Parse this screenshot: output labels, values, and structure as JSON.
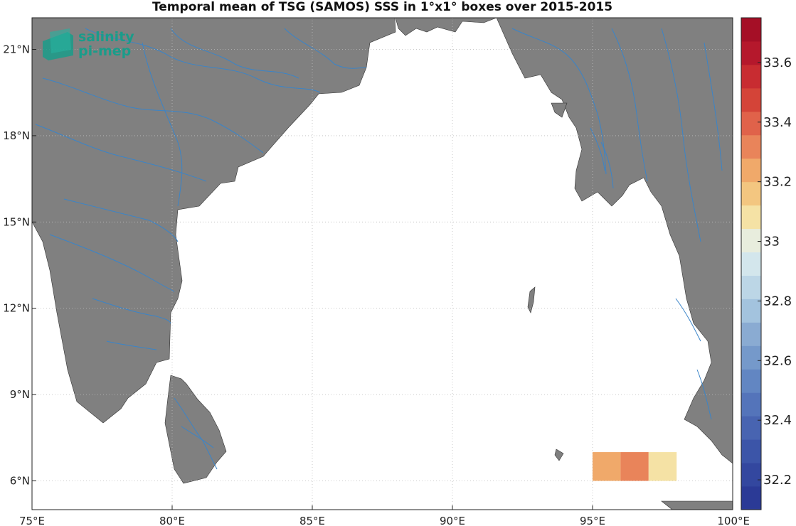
{
  "title": "Temporal mean of TSG (SAMOS) SSS in 1°x1° boxes over 2015-2015",
  "logo": {
    "line1": "salinity",
    "line2": "pi-mep",
    "color": "#1a9c8a"
  },
  "map": {
    "lon_range": [
      75,
      100
    ],
    "lat_range": [
      5,
      22.1
    ],
    "land_color": "#808080",
    "river_color": "#3a84c8",
    "grid": true,
    "lon_ticks": [
      {
        "value": 75,
        "label": "75°E"
      },
      {
        "value": 80,
        "label": "80°E"
      },
      {
        "value": 85,
        "label": "85°E"
      },
      {
        "value": 90,
        "label": "90°E"
      },
      {
        "value": 95,
        "label": "95°E"
      },
      {
        "value": 100,
        "label": "100°E"
      }
    ],
    "lat_ticks": [
      {
        "value": 6,
        "label": "6°N"
      },
      {
        "value": 9,
        "label": "9°N"
      },
      {
        "value": 12,
        "label": "12°N"
      },
      {
        "value": 15,
        "label": "15°N"
      },
      {
        "value": 18,
        "label": "18°N"
      },
      {
        "value": 21,
        "label": "21°N"
      }
    ]
  },
  "boxes": [
    {
      "lon": 95,
      "lat": 6,
      "sss": 33.25
    },
    {
      "lon": 96,
      "lat": 6,
      "sss": 33.35
    },
    {
      "lon": 97,
      "lat": 6,
      "sss": 33.05
    }
  ],
  "colorbar": {
    "min": 32.1,
    "max": 33.75,
    "ticks": [
      {
        "value": 32.2,
        "label": "32.2"
      },
      {
        "value": 32.4,
        "label": "32.4"
      },
      {
        "value": 32.6,
        "label": "32.6"
      },
      {
        "value": 32.8,
        "label": "32.8"
      },
      {
        "value": 33.0,
        "label": "33"
      },
      {
        "value": 33.2,
        "label": "33.2"
      },
      {
        "value": 33.4,
        "label": "33.4"
      },
      {
        "value": 33.6,
        "label": "33.6"
      }
    ],
    "colors": [
      "#2b3a96",
      "#33479f",
      "#3c55a8",
      "#4864b1",
      "#5474ba",
      "#6286c2",
      "#7599ca",
      "#8aabd2",
      "#a3c3de",
      "#bcd6e6",
      "#d3e6ec",
      "#e8eddd",
      "#f5e2a5",
      "#f3c680",
      "#f0a96a",
      "#e9845a",
      "#e0624a",
      "#d44438",
      "#c82c31",
      "#b5182c",
      "#a50f26"
    ]
  }
}
